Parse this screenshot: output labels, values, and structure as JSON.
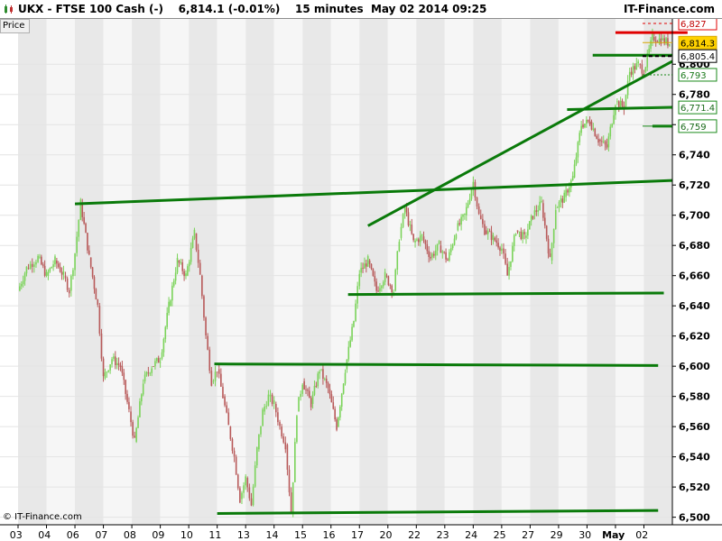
{
  "header": {
    "title": "UKX - FTSE 100 Cash (-)    6,814.1 (-0.01%)    15 minutes  May 02 2014 09:25",
    "brand": "IT-Finance.com"
  },
  "price_label": "Price",
  "copyright": "© IT-Finance.com",
  "colors": {
    "up": "#7bd35a",
    "down": "#b85a5a",
    "trendline": "#0a7a0a",
    "resistance": "#e00000",
    "band_dark": "#e8e8e8",
    "band_light": "#f6f6f6"
  },
  "chart_data": {
    "type": "line",
    "title": "UKX - FTSE 100 Cash (-)",
    "ylabel": "Price",
    "ylim": [
      6495,
      6830
    ],
    "x_ticks": [
      "03",
      "04",
      "06",
      "07",
      "08",
      "09",
      "10",
      "11",
      "13",
      "14",
      "15",
      "16",
      "17",
      "20",
      "22",
      "23",
      "24",
      "25",
      "27",
      "29",
      "30",
      "May",
      "02"
    ],
    "y_ticks": [
      6500,
      6520,
      6540,
      6560,
      6580,
      6600,
      6620,
      6640,
      6660,
      6680,
      6700,
      6720,
      6740,
      6760,
      6780,
      6800
    ],
    "y_tick_labels": [
      "6,500",
      "6,520",
      "6,540",
      "6,560",
      "6,580",
      "6,600",
      "6,620",
      "6,640",
      "6,660",
      "6,680",
      "6,700",
      "6,720",
      "6,740",
      "6,760",
      "6,780",
      "6,800"
    ],
    "price_path": [
      [
        0,
        6650
      ],
      [
        0.3,
        6665
      ],
      [
        0.7,
        6672
      ],
      [
        1.0,
        6660
      ],
      [
        1.3,
        6670
      ],
      [
        1.6,
        6660
      ],
      [
        1.8,
        6650
      ],
      [
        2.0,
        6675
      ],
      [
        2.2,
        6708
      ],
      [
        2.5,
        6672
      ],
      [
        2.8,
        6640
      ],
      [
        3.0,
        6592
      ],
      [
        3.3,
        6605
      ],
      [
        3.6,
        6600
      ],
      [
        3.9,
        6570
      ],
      [
        4.1,
        6550
      ],
      [
        4.4,
        6590
      ],
      [
        4.7,
        6600
      ],
      [
        5.0,
        6605
      ],
      [
        5.3,
        6640
      ],
      [
        5.6,
        6670
      ],
      [
        5.9,
        6660
      ],
      [
        6.2,
        6688
      ],
      [
        6.4,
        6660
      ],
      [
        6.6,
        6620
      ],
      [
        6.8,
        6590
      ],
      [
        7.0,
        6598
      ],
      [
        7.2,
        6580
      ],
      [
        7.4,
        6560
      ],
      [
        7.6,
        6540
      ],
      [
        7.8,
        6512
      ],
      [
        8.0,
        6526
      ],
      [
        8.2,
        6508
      ],
      [
        8.4,
        6545
      ],
      [
        8.6,
        6570
      ],
      [
        8.8,
        6580
      ],
      [
        9.0,
        6575
      ],
      [
        9.2,
        6560
      ],
      [
        9.4,
        6548
      ],
      [
        9.6,
        6503
      ],
      [
        9.8,
        6570
      ],
      [
        10.0,
        6590
      ],
      [
        10.3,
        6575
      ],
      [
        10.6,
        6598
      ],
      [
        10.9,
        6585
      ],
      [
        11.2,
        6560
      ],
      [
        11.5,
        6598
      ],
      [
        11.8,
        6630
      ],
      [
        12.0,
        6662
      ],
      [
        12.3,
        6670
      ],
      [
        12.6,
        6650
      ],
      [
        12.9,
        6660
      ],
      [
        13.2,
        6650
      ],
      [
        13.4,
        6685
      ],
      [
        13.6,
        6705
      ],
      [
        13.9,
        6682
      ],
      [
        14.2,
        6686
      ],
      [
        14.5,
        6672
      ],
      [
        14.8,
        6680
      ],
      [
        15.1,
        6670
      ],
      [
        15.4,
        6690
      ],
      [
        15.7,
        6700
      ],
      [
        16.0,
        6722
      ],
      [
        16.2,
        6700
      ],
      [
        16.4,
        6690
      ],
      [
        16.7,
        6685
      ],
      [
        17.0,
        6678
      ],
      [
        17.2,
        6660
      ],
      [
        17.5,
        6690
      ],
      [
        17.8,
        6685
      ],
      [
        18.1,
        6700
      ],
      [
        18.4,
        6708
      ],
      [
        18.7,
        6670
      ],
      [
        18.9,
        6705
      ],
      [
        19.2,
        6712
      ],
      [
        19.5,
        6725
      ],
      [
        19.8,
        6760
      ],
      [
        20.1,
        6762
      ],
      [
        20.4,
        6750
      ],
      [
        20.7,
        6745
      ],
      [
        21.0,
        6775
      ],
      [
        21.3,
        6772
      ],
      [
        21.5,
        6795
      ],
      [
        21.8,
        6800
      ],
      [
        22.0,
        6795
      ],
      [
        22.3,
        6818
      ],
      [
        22.6,
        6816
      ],
      [
        22.9,
        6814
      ]
    ],
    "lines": [
      {
        "name": "horizontal-6505",
        "x1": 7.0,
        "y1": 6502.5,
        "x2": 22.5,
        "y2": 6504.5
      },
      {
        "name": "horizontal-6600",
        "x1": 6.9,
        "y1": 6601.5,
        "x2": 22.5,
        "y2": 6600.5
      },
      {
        "name": "horizontal-6648",
        "x1": 11.6,
        "y1": 6647.5,
        "x2": 22.7,
        "y2": 6648.5
      },
      {
        "name": "horizontal-6720",
        "x1": 2.0,
        "y1": 6707.5,
        "x2": 23.0,
        "y2": 6723.0
      },
      {
        "name": "rising-trendline",
        "x1": 12.3,
        "y1": 6693,
        "x2": 23.0,
        "y2": 6802
      },
      {
        "name": "support-6771",
        "x1": 19.3,
        "y1": 6770,
        "x2": 23.0,
        "y2": 6771.5
      },
      {
        "name": "support-6759",
        "x1": 22.3,
        "y1": 6759,
        "x2": 23.0,
        "y2": 6759
      },
      {
        "name": "short-support-6805",
        "x1": 20.2,
        "y1": 6806,
        "x2": 23.0,
        "y2": 6806
      }
    ],
    "markers": [
      {
        "label": "6,827",
        "value": 6827,
        "style": "red-dashed"
      },
      {
        "label": "6,814.3",
        "value": 6814.3,
        "style": "yellow-box"
      },
      {
        "label": "6,805.4",
        "value": 6805.4,
        "style": "black-dashed"
      },
      {
        "label": "6,793",
        "value": 6793,
        "style": "green-dashed"
      },
      {
        "label": "6,771.4",
        "value": 6771.4,
        "style": "green-box"
      },
      {
        "label": "6,759",
        "value": 6759,
        "style": "green-box"
      }
    ],
    "resistance": {
      "value": 6821,
      "x1": 21.0,
      "x2": 22.9
    }
  }
}
